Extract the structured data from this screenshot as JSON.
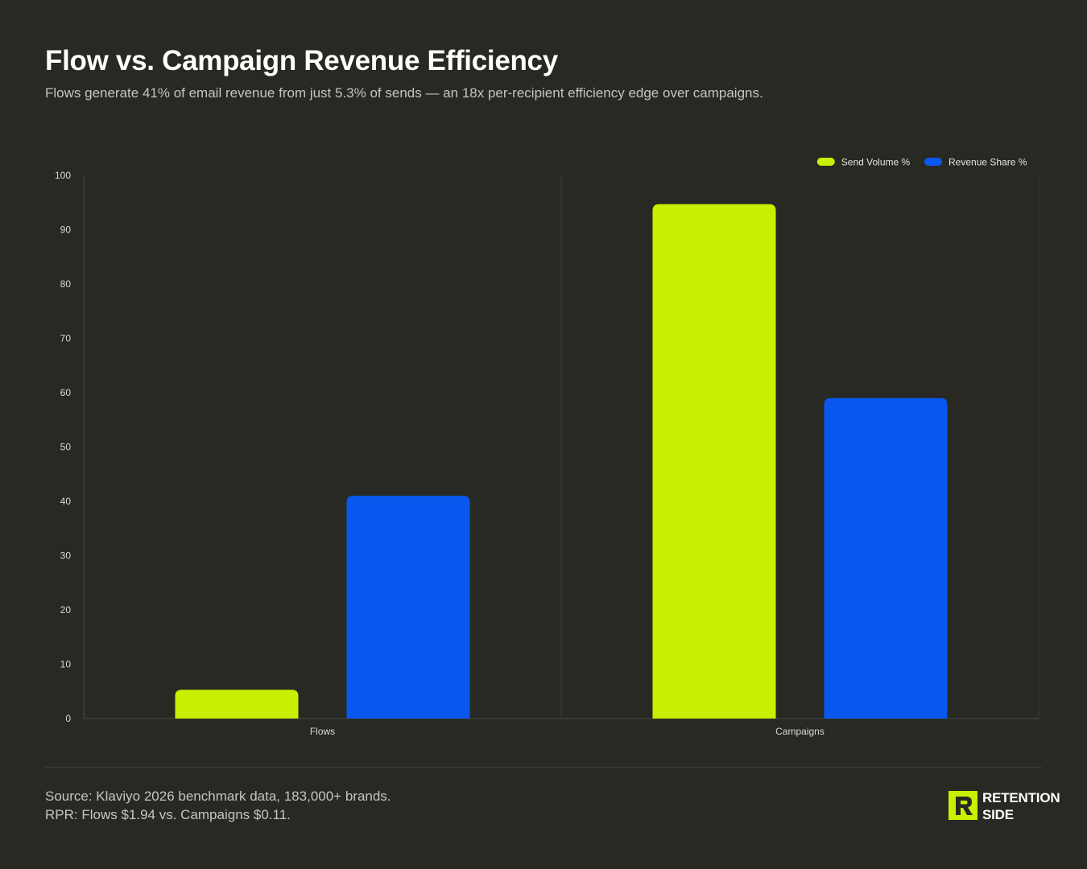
{
  "header": {
    "title": "Flow vs. Campaign Revenue Efficiency",
    "subtitle": "Flows generate 41% of email revenue from just 5.3% of sends — an 18x per-recipient efficiency edge over campaigns."
  },
  "chart_data": {
    "type": "bar",
    "categories": [
      "Flows",
      "Campaigns"
    ],
    "series": [
      {
        "name": "Send Volume %",
        "values": [
          5.3,
          94.7
        ],
        "color": "#c8f000"
      },
      {
        "name": "Revenue Share %",
        "values": [
          41,
          59
        ],
        "color": "#0a57f0"
      }
    ],
    "ylim": [
      0,
      100
    ],
    "yticks": [
      0,
      10,
      20,
      30,
      40,
      50,
      60,
      70,
      80,
      90,
      100
    ],
    "grid": "vertical category separators",
    "legend_position": "top-right"
  },
  "footer": {
    "line1": "Source: Klaviyo 2026 benchmark data, 183,000+ brands.",
    "line2": "RPR: Flows $1.94 vs. Campaigns $0.11."
  },
  "logo": {
    "line1": "RETENTION",
    "line2": "SIDE",
    "color": "#c8f000"
  }
}
